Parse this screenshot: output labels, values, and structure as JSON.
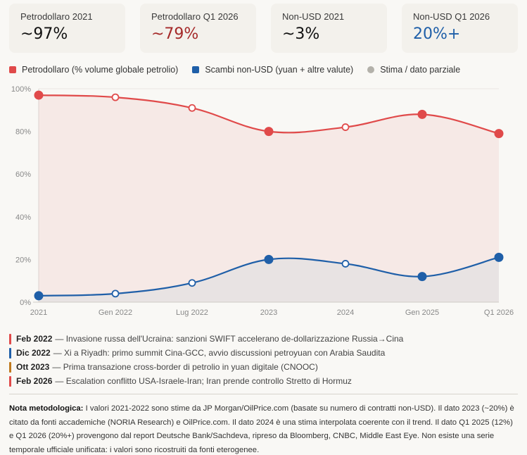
{
  "cards": [
    {
      "label": "Petrodollaro 2021",
      "value": "~97%",
      "color": "#111111"
    },
    {
      "label": "Petrodollaro Q1 2026",
      "value": "~79%",
      "color": "#a52a2a"
    },
    {
      "label": "Non-USD 2021",
      "value": "~3%",
      "color": "#111111"
    },
    {
      "label": "Non-USD Q1 2026",
      "value": "20%+",
      "color": "#1f5fa8"
    }
  ],
  "legend": [
    {
      "label": "Petrodollaro (% volume globale petrolio)",
      "color": "#e04a4a",
      "shape": "square"
    },
    {
      "label": "Scambi non-USD (yuan + altre valute)",
      "color": "#1f5fa8",
      "shape": "square"
    },
    {
      "label": "Stima / dato parziale",
      "color": "#b3b1aa",
      "shape": "circle"
    }
  ],
  "chart_data": {
    "type": "line",
    "title": "",
    "xlabel": "",
    "ylabel": "",
    "categories": [
      "2021",
      "Gen 2022",
      "Lug 2022",
      "2023",
      "2024",
      "Gen 2025",
      "Q1 2026"
    ],
    "ylim": [
      0,
      100
    ],
    "yticks": [
      0,
      20,
      40,
      60,
      80,
      100
    ],
    "ytick_labels": [
      "0%",
      "20%",
      "40%",
      "60%",
      "80%",
      "100%"
    ],
    "grid": true,
    "area_fill": true,
    "series": [
      {
        "name": "Petrodollaro (% volume globale petrolio)",
        "color": "#e04a4a",
        "fill": "#f6e9e6",
        "values": [
          97,
          96,
          91,
          80,
          82,
          88,
          79
        ],
        "estimated": [
          false,
          true,
          true,
          false,
          true,
          false,
          false
        ]
      },
      {
        "name": "Scambi non-USD (yuan + altre valute)",
        "color": "#1f5fa8",
        "fill": "#e8e3e3",
        "values": [
          3,
          4,
          9,
          20,
          18,
          12,
          21
        ],
        "estimated": [
          false,
          true,
          true,
          false,
          true,
          false,
          false
        ]
      }
    ]
  },
  "events": [
    {
      "date": "Feb 2022",
      "text": "— Invasione russa dell'Ucraina: sanzioni SWIFT accelerano de-dollarizzazione Russia→Cina",
      "color": "#e04a4a"
    },
    {
      "date": "Dic 2022",
      "text": "— Xi a Riyadh: primo summit Cina-GCC, avvio discussioni petroyuan con Arabia Saudita",
      "color": "#1f5fa8"
    },
    {
      "date": "Ott 2023",
      "text": "— Prima transazione cross-border di petrolio in yuan digitale (CNOOC)",
      "color": "#c07a1e"
    },
    {
      "date": "Feb 2026",
      "text": "— Escalation conflitto USA-Israele-Iran; Iran prende controllo Stretto di Hormuz",
      "color": "#e04a4a"
    }
  ],
  "note": {
    "title": "Nota metodologica:",
    "text": " I valori 2021-2022 sono stime da JP Morgan/OilPrice.com (basate su numero di contratti non-USD). Il dato 2023 (~20%) è citato da fonti accademiche (NORIA Research) e OilPrice.com. Il dato 2024 è una stima interpolata coerente con il trend. Il dato Q1 2025 (12%) e Q1 2026 (20%+) provengono dal report Deutsche Bank/Sachdeva, ripreso da Bloomberg, CNBC, Middle East Eye. Non esiste una serie temporale ufficiale unificata: i valori sono ricostruiti da fonti eterogenee."
  }
}
